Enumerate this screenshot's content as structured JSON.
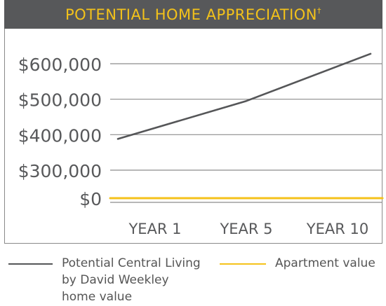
{
  "header": {
    "title": "POTENTIAL HOME APPRECIATION",
    "superscript": "†"
  },
  "colors": {
    "header_bg": "#57585a",
    "header_text": "#f3c21a",
    "series_home": "#555658",
    "series_apartment": "#f5c21b",
    "gridline": "#8c8c8c",
    "axis_text": "#58595b"
  },
  "chart_data": {
    "type": "line",
    "x": [
      "YEAR 1",
      "YEAR 5",
      "YEAR 10"
    ],
    "y_ticks": [
      "$0",
      "$300,000",
      "$400,000",
      "$500,000",
      "$600,000"
    ],
    "series": [
      {
        "name": "Potential Central Living by David Weekley home value",
        "values": [
          388000,
          495000,
          628000
        ]
      },
      {
        "name": "Apartment value",
        "values": [
          0,
          0,
          0
        ]
      }
    ],
    "ylim": [
      0,
      650000
    ],
    "grid": true,
    "legend": "bottom"
  },
  "legend": {
    "home_line1": "Potential Central Living",
    "home_line2": "by David Weekley",
    "home_line3": "home value",
    "apartment": "Apartment value"
  }
}
